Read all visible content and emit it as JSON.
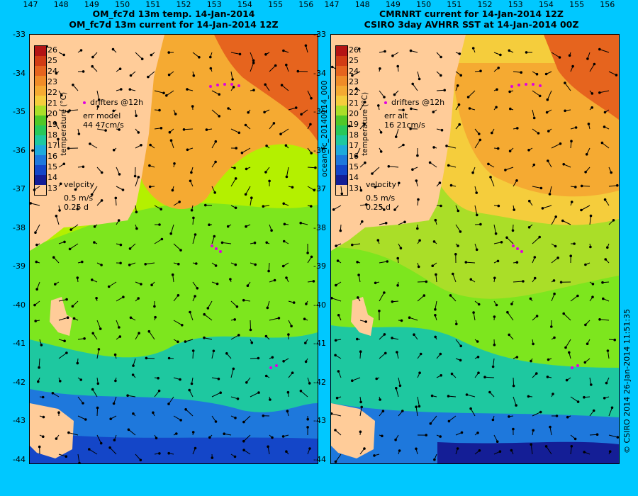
{
  "left": {
    "title_line1": "OM_fc7d 13m temp. 14-Jan-2014",
    "title_line2": "OM_fc7d 13m current for 14-Jan-2014 12Z",
    "drifters": "drifters @12h",
    "err_label": "err model",
    "err_value": "44 47cm/s",
    "velocity_label": "velocity",
    "velocity_scale1": "0.5 m/s",
    "velocity_scale2": "0.25 d"
  },
  "right": {
    "title_line1": "CMRNRT current for 14-Jan-2014 12Z",
    "title_line2": "CSIRO 3day AVHRR SST at 14-Jan-2014 00Z",
    "drifters": "drifters @12h",
    "err_label": "err alt",
    "err_value": "16 21cm/s",
    "velocity_label": "velocity",
    "velocity_scale1": "0.5 m/s",
    "velocity_scale2": "0.25 d"
  },
  "colorbar_title": "temperature (°C)",
  "colorbar_ticks": [
    "26",
    "25",
    "24",
    "23",
    "22",
    "21",
    "20",
    "19",
    "18",
    "17",
    "16",
    "15",
    "14",
    "13"
  ],
  "colorbar_colors": [
    "#b41414",
    "#d23c14",
    "#e6641e",
    "#f08c28",
    "#f5aa32",
    "#f5cd3c",
    "#aade28",
    "#50c828",
    "#28c85a",
    "#1ec8a0",
    "#1eaadc",
    "#1e78dc",
    "#1446c8",
    "#141e96"
  ],
  "lat_ticks": [
    "-33",
    "-34",
    "-35",
    "-36",
    "-37",
    "-38",
    "-39",
    "-40",
    "-41",
    "-42",
    "-43",
    "-44"
  ],
  "lon_ticks": [
    "147",
    "148",
    "149",
    "150",
    "151",
    "152",
    "153",
    "154",
    "155",
    "156"
  ],
  "vertical_id": "ocean_fc_20140114_000",
  "footer": "© CSIRO 2014   26-Jan-2014 11:51:35",
  "colors": {
    "background": "#00c8ff",
    "land": "#ffcc99",
    "drifter": "#e000e0"
  }
}
